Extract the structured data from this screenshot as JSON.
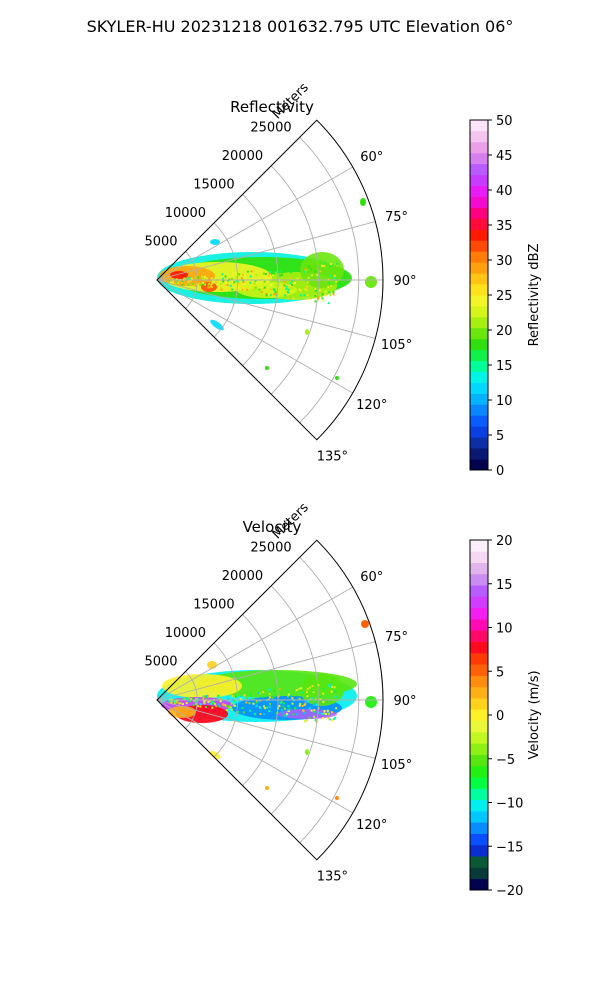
{
  "suptitle": "SKYLER-HU  20231218  001632.795 UTC Elevation 06°",
  "chart_data": [
    {
      "type": "polar-sector",
      "title": "Reflectivity",
      "range_label": "Meters",
      "r_ticks": [
        5000,
        10000,
        15000,
        20000,
        25000
      ],
      "r_tick_labels": [
        "5000",
        "10000",
        "15000",
        "20000",
        "25000"
      ],
      "r_max": 28000,
      "theta_range_deg": [
        45,
        135
      ],
      "theta_ticks": [
        60,
        75,
        90,
        105,
        120,
        135
      ],
      "theta_tick_labels": [
        "60°",
        "75°",
        "90°",
        "105°",
        "120°",
        "135°"
      ],
      "grid": true,
      "colorbar": {
        "label": "Reflectivity dBZ",
        "ticks": [
          0,
          5,
          10,
          15,
          20,
          25,
          30,
          35,
          40,
          45,
          50
        ],
        "tick_labels": [
          "0",
          "5",
          "10",
          "15",
          "20",
          "25",
          "30",
          "35",
          "40",
          "45",
          "50"
        ],
        "range": [
          0,
          50
        ],
        "colors": [
          "#02024f",
          "#0a1a74",
          "#0c2fa6",
          "#0a40e0",
          "#0a5cff",
          "#0a86ff",
          "#06b3ff",
          "#00d9ff",
          "#00f5e6",
          "#00ff99",
          "#12f04a",
          "#30e00e",
          "#6ae60d",
          "#a8ee10",
          "#d6f41a",
          "#f3f526",
          "#ffe21c",
          "#ffc414",
          "#ffa00e",
          "#ff7c09",
          "#ff4a05",
          "#ff1a03",
          "#ff0a3a",
          "#ff0080",
          "#f50ad0",
          "#e81cf5",
          "#c83cff",
          "#b85cff",
          "#d57ff0",
          "#ea9fe8",
          "#f3c4f0",
          "#fbe4fa"
        ]
      }
    },
    {
      "type": "polar-sector",
      "title": "Velocity",
      "range_label": "Meters",
      "r_ticks": [
        5000,
        10000,
        15000,
        20000,
        25000
      ],
      "r_tick_labels": [
        "5000",
        "10000",
        "15000",
        "20000",
        "25000"
      ],
      "r_max": 28000,
      "theta_range_deg": [
        45,
        135
      ],
      "theta_ticks": [
        60,
        75,
        90,
        105,
        120,
        135
      ],
      "theta_tick_labels": [
        "60°",
        "75°",
        "90°",
        "105°",
        "120°",
        "135°"
      ],
      "grid": true,
      "colorbar": {
        "label": "Velocity (m/s)",
        "ticks": [
          -20,
          -15,
          -10,
          -5,
          0,
          5,
          10,
          15,
          20
        ],
        "tick_labels": [
          "−20",
          "−15",
          "−10",
          "−5",
          "0",
          "5",
          "10",
          "15",
          "20"
        ],
        "range": [
          -20,
          20
        ],
        "colors": [
          "#02024f",
          "#093a3a",
          "#0a5a3a",
          "#0a2fd0",
          "#0a50ff",
          "#0a8cff",
          "#00c8ff",
          "#00f0f0",
          "#00ff9e",
          "#00ff40",
          "#22f012",
          "#58e60f",
          "#8ef014",
          "#c2f822",
          "#eaf83a",
          "#fff02a",
          "#ffd21c",
          "#ffb014",
          "#ff8c0c",
          "#ff6206",
          "#ff3a04",
          "#ff0a1e",
          "#ff0a66",
          "#ff0ab4",
          "#f51ef0",
          "#d23cff",
          "#b85cff",
          "#c98cf0",
          "#e2b4ee",
          "#f4d8f4",
          "#fdf0fb"
        ]
      }
    }
  ]
}
